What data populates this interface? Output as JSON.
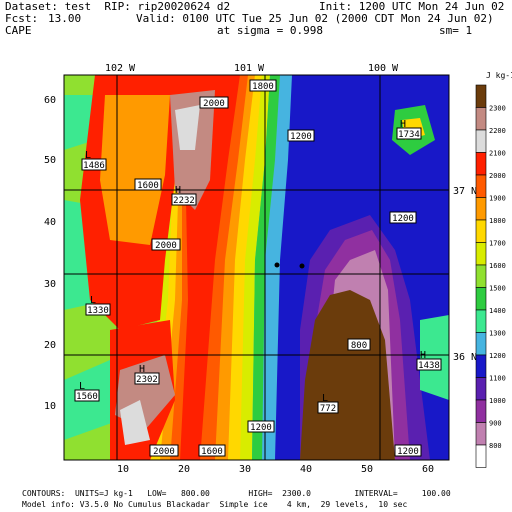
{
  "header": {
    "dataset": "Dataset: test  RIP: rip20020624 d2",
    "init": "Init: 1200 UTC Mon 24 Jun 02",
    "fcst_label": "Fcst:",
    "fcst_value": "13.00",
    "valid": "Valid: 0100 UTC Tue 25 Jun 02 (2000 CDT Mon 24 Jun 02)",
    "field": "CAPE",
    "sigma": "at sigma = 0.998",
    "sm": "sm= 1"
  },
  "map": {
    "lon_labels": [
      "102 W",
      "101 W",
      "100 W"
    ],
    "lat_labels": [
      "37 N",
      "36 N"
    ],
    "x_ticks": [
      "10",
      "20",
      "30",
      "40",
      "50",
      "60"
    ],
    "y_ticks": [
      "10",
      "20",
      "30",
      "40",
      "50",
      "60"
    ],
    "x_range": [
      1,
      64
    ],
    "y_range": [
      1,
      64
    ]
  },
  "colorbar": {
    "unit": "J kg-1",
    "levels": [
      "2300",
      "2200",
      "2100",
      "2000",
      "1900",
      "1800",
      "1700",
      "1600",
      "1500",
      "1400",
      "1300",
      "1200",
      "1100",
      "1000",
      "900",
      "800"
    ],
    "colors": [
      "#6b3c0c",
      "#c38a82",
      "#dcdcdc",
      "#ff2000",
      "#ff5a00",
      "#ff9a00",
      "#ffd800",
      "#d8ec00",
      "#90e030",
      "#2ecc40",
      "#3ce890",
      "#46b4e0",
      "#1818c8",
      "#5a20b0",
      "#9030a0",
      "#c080b0",
      "#ffffff"
    ]
  },
  "labels": {
    "contour_2000_top": "2000",
    "contour_1800_top": "1800",
    "contour_1600": "1600",
    "contour_1200_a": "1200",
    "contour_1200_b": "1200",
    "contour_2000_mid": "2000",
    "contour_800": "800",
    "contour_1200_bot": "1200",
    "contour_1600_bot": "1600",
    "contour_2000_bot": "2000",
    "contour_1200_br": "1200",
    "H_1734": "1734",
    "L_1486": "1486",
    "H_2232": "2232",
    "L_1330": "1330",
    "H_2302": "2302",
    "L_1560": "1560",
    "L_772": "772",
    "H_1438": "1438",
    "H": "H",
    "L": "L"
  },
  "footer": {
    "line1": "CONTOURS:  UNITS=J kg-1   LOW=   800.00        HIGH=  2300.0         INTERVAL=     100.00",
    "line2": "Model info: V3.5.0 No Cumulus Blackadar  Simple ice    4 km,  29 levels,  10 sec"
  }
}
